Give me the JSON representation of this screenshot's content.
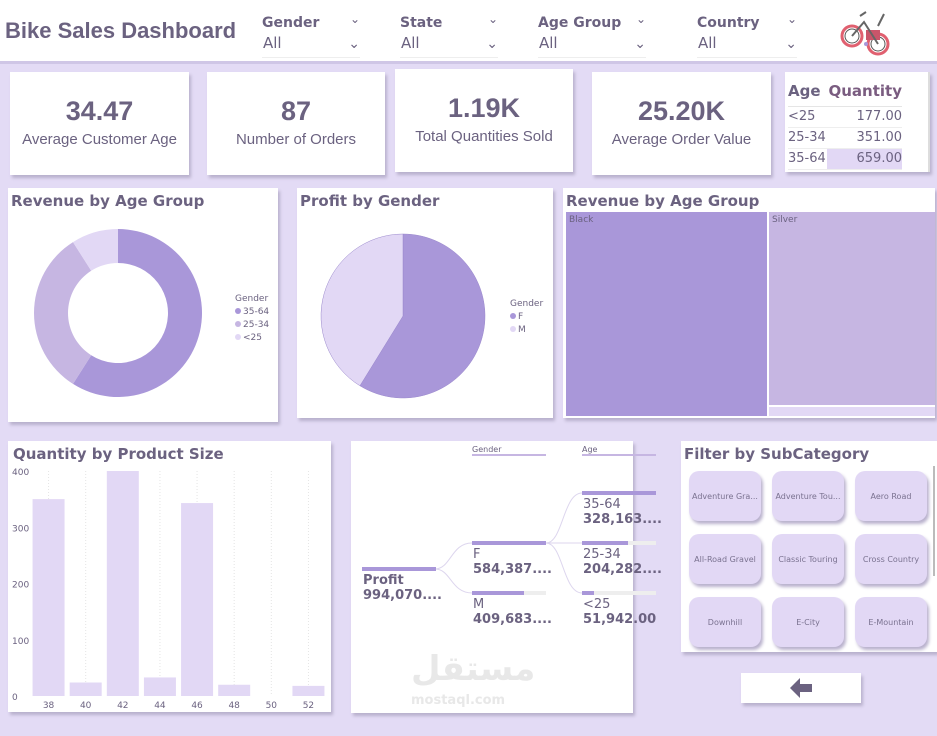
{
  "header": {
    "title": "Bike Sales Dashboard",
    "slicers": [
      {
        "label": "Gender",
        "value": "All"
      },
      {
        "label": "State",
        "value": "All"
      },
      {
        "label": "Age Group",
        "value": "All"
      },
      {
        "label": "Country",
        "value": "All"
      }
    ]
  },
  "kpis": [
    {
      "value": "34.47",
      "label": "Average Customer Age"
    },
    {
      "value": "87",
      "label": "Number of Orders"
    },
    {
      "value": "1.19K",
      "label": "Total Quantities Sold"
    },
    {
      "value": "25.20K",
      "label": "Average Order Value"
    }
  ],
  "age_table": {
    "headers": [
      "Age",
      "Quantity"
    ],
    "rows": [
      [
        "<25",
        "177.00"
      ],
      [
        "25-34",
        "351.00"
      ],
      [
        "35-64",
        "659.00"
      ]
    ]
  },
  "colors": {
    "primary": "#a997d9",
    "secondary": "#c6b6e2",
    "light": "#e2d8f5",
    "text": "#6b6280"
  },
  "chart_data": [
    {
      "type": "pie",
      "variant": "donut",
      "title": "Revenue by Age Group",
      "legend_title": "Gender",
      "legend_position": "right",
      "categories": [
        "35-64",
        "25-34",
        "<25"
      ],
      "values": [
        59,
        32,
        9
      ]
    },
    {
      "type": "pie",
      "title": "Profit by Gender",
      "legend_title": "Gender",
      "legend_position": "right",
      "categories": [
        "F",
        "M"
      ],
      "values": [
        58.8,
        41.2
      ]
    },
    {
      "type": "treemap",
      "title": "Revenue by Age Group",
      "categories": [
        "Black",
        "Silver",
        ""
      ],
      "values": [
        55,
        42,
        3
      ]
    },
    {
      "type": "bar",
      "title": "Quantity by Product Size",
      "categories": [
        "38",
        "40",
        "42",
        "44",
        "46",
        "48",
        "50",
        "52"
      ],
      "values": [
        350,
        24,
        400,
        33,
        343,
        20,
        0,
        18
      ],
      "ylim": [
        0,
        400
      ],
      "yticks": [
        "0",
        "100",
        "200",
        "300",
        "400"
      ],
      "grid": "vertical dotted"
    }
  ],
  "decomp": {
    "levels": [
      "Gender",
      "Age"
    ],
    "root": {
      "label": "Profit",
      "value": "994,070...."
    },
    "gender": [
      {
        "label": "F",
        "value": "584,387....",
        "share": 1
      },
      {
        "label": "M",
        "value": "409,683....",
        "share": 0.7
      }
    ],
    "age": [
      {
        "label": "35-64",
        "value": "328,163....",
        "share": 1
      },
      {
        "label": "25-34",
        "value": "204,282....",
        "share": 0.62
      },
      {
        "label": "<25",
        "value": "51,942.00",
        "share": 0.16
      }
    ]
  },
  "subcategory": {
    "title": "Filter by SubCategory",
    "items": [
      "Adventure Gra...",
      "Adventure Tou...",
      "Aero Road",
      "All-Road Gravel",
      "Classic Touring",
      "Cross Country",
      "Downhill",
      "E-City",
      "E-Mountain"
    ]
  },
  "watermark": {
    "arabic": "مستقل",
    "latin": "mostaql.com"
  },
  "icons": {
    "back": "arrow-left-icon",
    "logo": "bike-icon",
    "dropdown": "chevron-down-icon"
  }
}
